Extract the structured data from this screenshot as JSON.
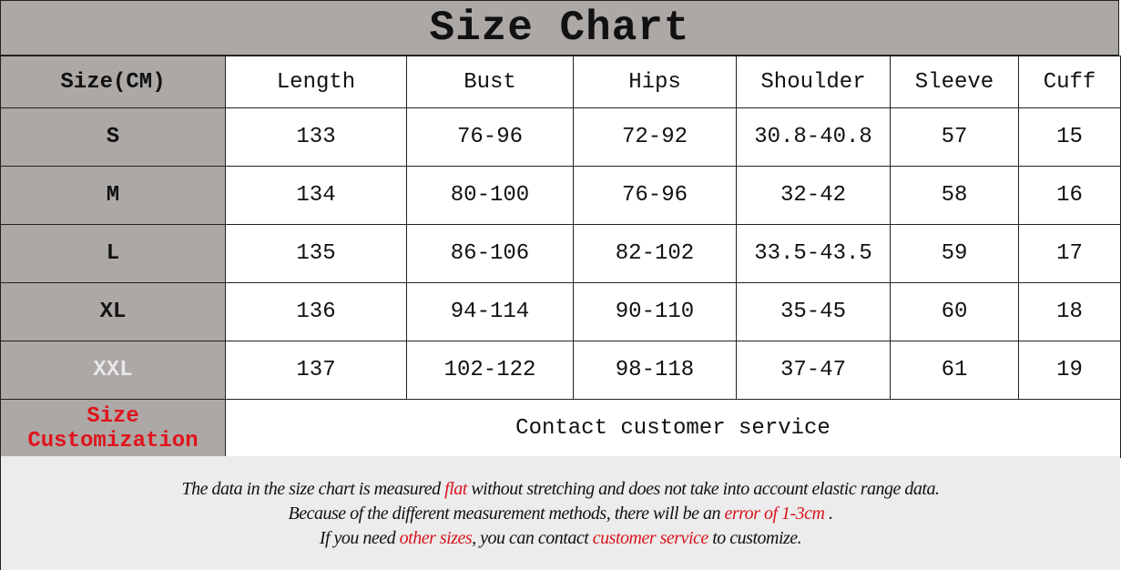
{
  "title": "Size Chart",
  "headers": [
    "Size(CM)",
    "Length",
    "Bust",
    "Hips",
    "Shoulder",
    "Sleeve",
    "Cuff"
  ],
  "rows": [
    [
      "S",
      "133",
      "76-96",
      "72-92",
      "30.8-40.8",
      "57",
      "15"
    ],
    [
      "M",
      "134",
      "80-100",
      "76-96",
      "32-42",
      "58",
      "16"
    ],
    [
      "L",
      "135",
      "86-106",
      "82-102",
      "33.5-43.5",
      "59",
      "17"
    ],
    [
      "XL",
      "136",
      "94-114",
      "90-110",
      "35-45",
      "60",
      "18"
    ],
    [
      "XXL",
      "137",
      "102-122",
      "98-118",
      "37-47",
      "61",
      "19"
    ]
  ],
  "customization": {
    "label": "Size Customization",
    "value": "Contact customer service"
  },
  "notes": {
    "line1": [
      "The data in the size chart is measured ",
      "flat",
      " without stretching and does not take into account elastic range data."
    ],
    "line2": [
      "Because of the different measurement methods, there will be an ",
      "error of 1-3cm",
      " ."
    ],
    "line3": [
      "If you need ",
      "other sizes",
      ", you can contact ",
      "customer service",
      " to customize."
    ]
  },
  "colors": {
    "label_bg": "#aca8a6",
    "accent_red": "#e0141c",
    "note_bg": "#ececec"
  }
}
